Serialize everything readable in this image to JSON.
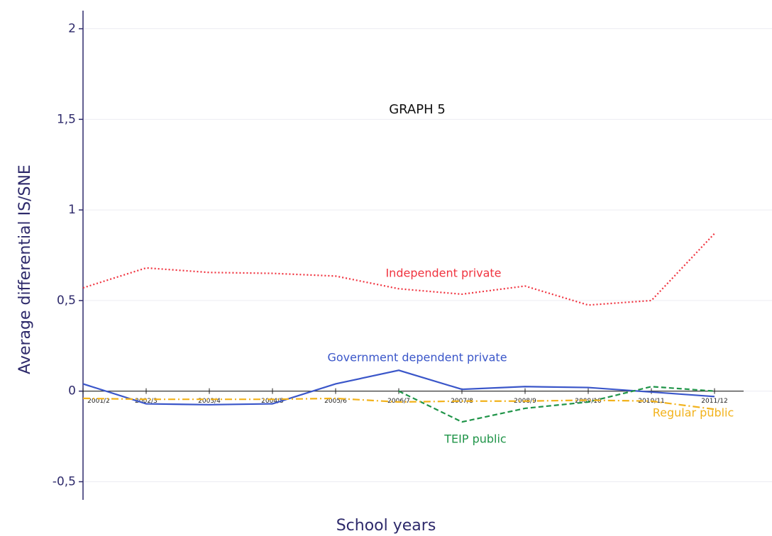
{
  "chart_data": {
    "type": "line",
    "title": "GRAPH 5",
    "x_label": "School years",
    "y_label": "Average differential IS/SNE",
    "categories": [
      "2001/2",
      "2002/3",
      "2003/4",
      "2004/5",
      "2005/6",
      "2006/7",
      "2007/8",
      "2008/9",
      "2009/10",
      "2010/11",
      "2011/12"
    ],
    "series": [
      {
        "name": "Independent private",
        "color": "#f0333f",
        "dash": "dotted",
        "values": [
          0.57,
          0.68,
          0.655,
          0.65,
          0.635,
          0.565,
          0.535,
          0.58,
          0.475,
          0.5,
          0.87
        ]
      },
      {
        "name": "Government dependent private",
        "color": "#3a56c9",
        "dash": "solid",
        "values": [
          0.04,
          -0.07,
          -0.075,
          -0.07,
          0.04,
          0.115,
          0.01,
          0.025,
          0.02,
          -0.005,
          -0.03
        ]
      },
      {
        "name": "TEIP public",
        "color": "#1f9448",
        "dash": "dashed",
        "values": [
          null,
          null,
          null,
          null,
          null,
          0,
          -0.17,
          -0.095,
          -0.06,
          0.025,
          0
        ]
      },
      {
        "name": "Regular public",
        "color": "#f2b21b",
        "dash": "dashdot",
        "values": [
          -0.04,
          -0.045,
          -0.045,
          -0.045,
          -0.04,
          -0.06,
          -0.055,
          -0.055,
          -0.05,
          -0.055,
          -0.1
        ]
      }
    ],
    "ylim": [
      -0.6,
      2.1
    ],
    "yticks": [
      {
        "value": -0.5,
        "label": "-0,5"
      },
      0,
      {
        "value": 0.5,
        "label": "0,5"
      },
      1,
      {
        "value": 1.5,
        "label": "1,5"
      },
      2
    ],
    "grid": true
  }
}
